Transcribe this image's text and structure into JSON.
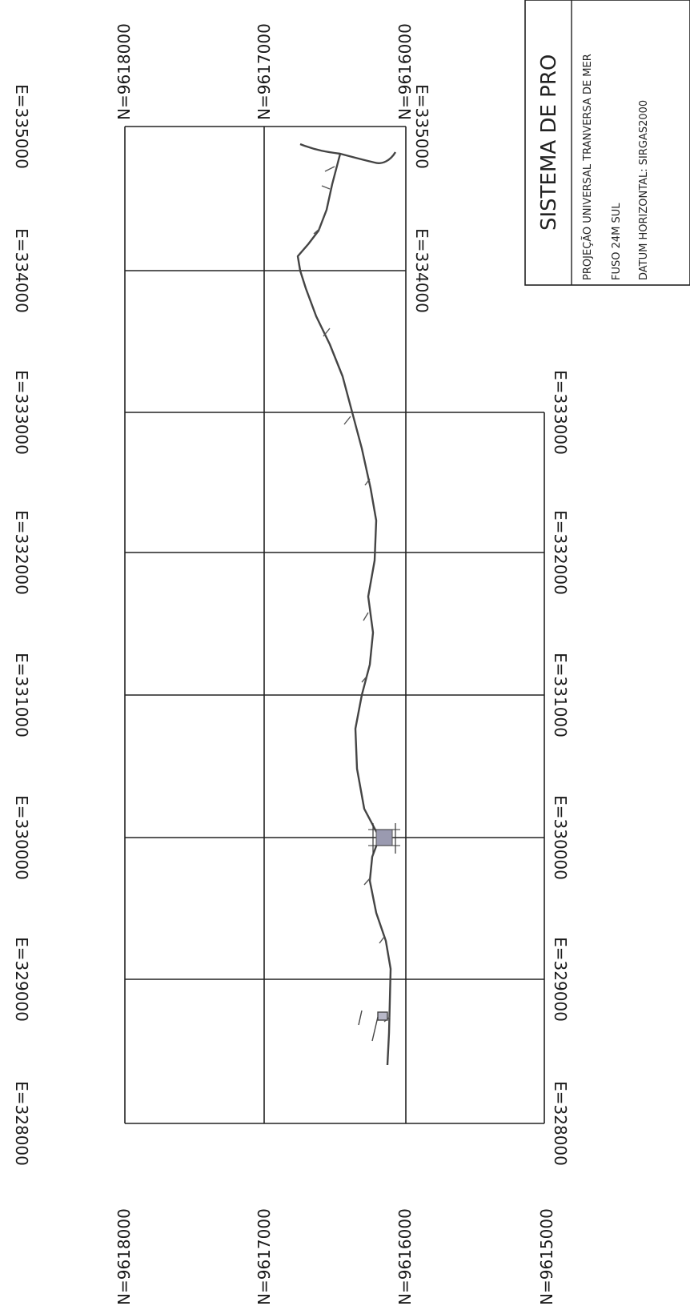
{
  "labels": {
    "north_grid": [
      "N=9618000",
      "N=9617000",
      "N=9616000",
      "N=9615000"
    ],
    "east_grid": [
      "E=335000",
      "E=334000",
      "E=333000",
      "E=332000",
      "E=331000",
      "E=330000",
      "E=329000",
      "E=328000"
    ]
  },
  "info_box": {
    "title": "SISTEMA DE PRO",
    "lines": [
      "PROJEÇÃO UNIVERSAL TRANVERSA DE MER",
      "FUSO 24M SUL",
      "DATUM HORIZONTAL: SIRGAS2000"
    ]
  },
  "colors": {
    "grid": "#222222",
    "route": "#444444",
    "marker_fill": "#9a9ab0"
  }
}
